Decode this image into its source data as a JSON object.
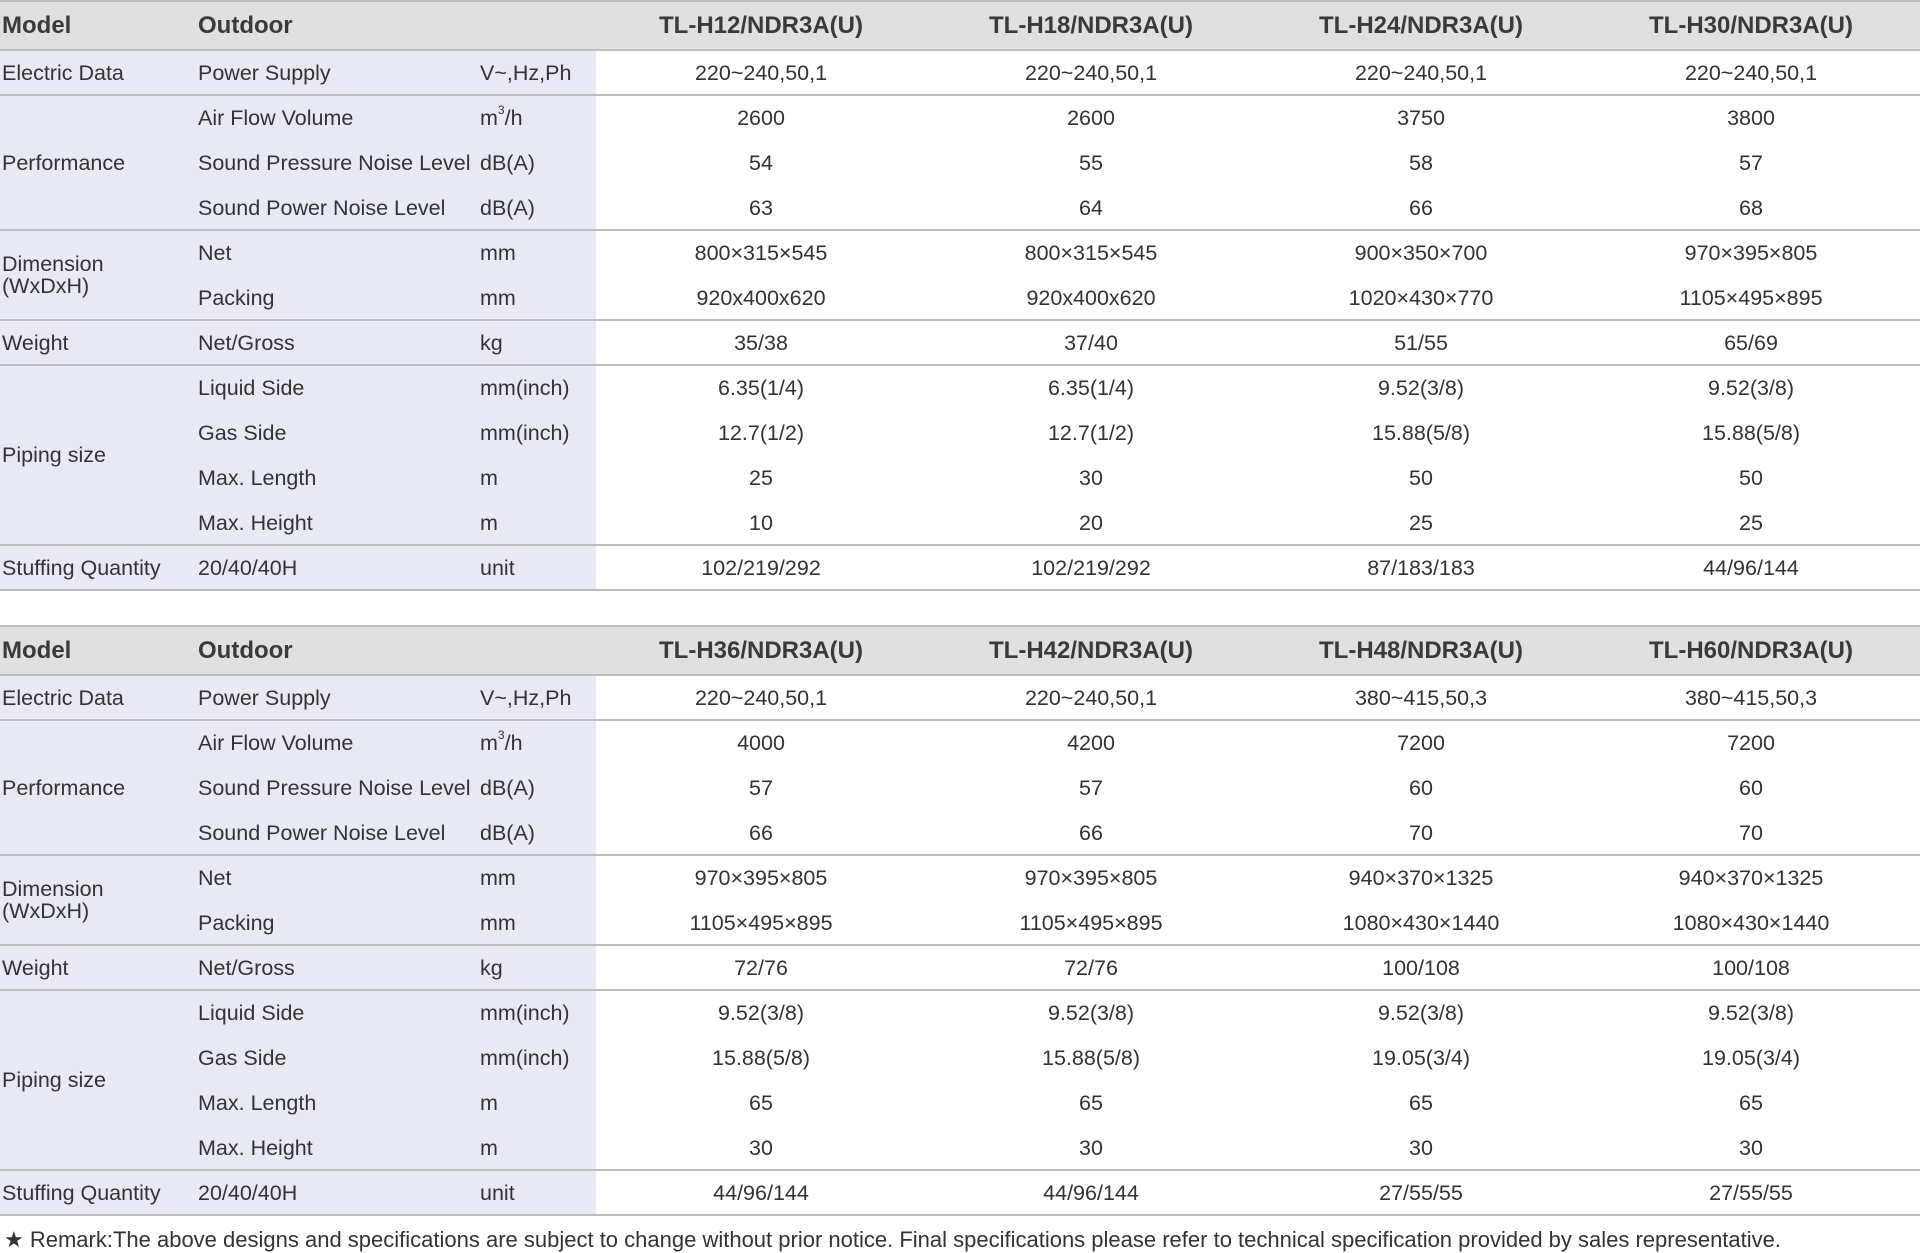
{
  "tables": [
    {
      "header": [
        "Model",
        "Outdoor",
        "TL-H12/NDR3A(U)",
        "TL-H18/NDR3A(U)",
        "TL-H24/NDR3A(U)",
        "TL-H30/NDR3A(U)"
      ],
      "groups": {
        "electric": "Electric Data",
        "performance": "Performance",
        "dimension": "Dimension (WxDxH)",
        "weight": "Weight",
        "piping": "Piping size",
        "stuffing": "Stuffing Quantity"
      },
      "rows": [
        {
          "label": "Power Supply",
          "unit": "V~,Hz,Ph",
          "values": [
            "220~240,50,1",
            "220~240,50,1",
            "220~240,50,1",
            "220~240,50,1"
          ]
        },
        {
          "label": "Air Flow Volume",
          "unit": "m3/h",
          "values": [
            "2600",
            "2600",
            "3750",
            "3800"
          ]
        },
        {
          "label": "Sound Pressure Noise Level",
          "unit": "dB(A)",
          "values": [
            "54",
            "55",
            "58",
            "57"
          ]
        },
        {
          "label": "Sound Power Noise Level",
          "unit": "dB(A)",
          "values": [
            "63",
            "64",
            "66",
            "68"
          ]
        },
        {
          "label": "Net",
          "unit": "mm",
          "values": [
            "800×315×545",
            "800×315×545",
            "900×350×700",
            "970×395×805"
          ]
        },
        {
          "label": "Packing",
          "unit": "mm",
          "values": [
            "920x400x620",
            "920x400x620",
            "1020×430×770",
            "1105×495×895"
          ]
        },
        {
          "label": "Net/Gross",
          "unit": "kg",
          "values": [
            "35/38",
            "37/40",
            "51/55",
            "65/69"
          ]
        },
        {
          "label": "Liquid Side",
          "unit": "mm(inch)",
          "values": [
            "6.35(1/4)",
            "6.35(1/4)",
            "9.52(3/8)",
            "9.52(3/8)"
          ]
        },
        {
          "label": "Gas Side",
          "unit": "mm(inch)",
          "values": [
            "12.7(1/2)",
            "12.7(1/2)",
            "15.88(5/8)",
            "15.88(5/8)"
          ]
        },
        {
          "label": "Max. Length",
          "unit": "m",
          "values": [
            "25",
            "30",
            "50",
            "50"
          ]
        },
        {
          "label": "Max. Height",
          "unit": "m",
          "values": [
            "10",
            "20",
            "25",
            "25"
          ]
        },
        {
          "label": "20/40/40H",
          "unit": "unit",
          "values": [
            "102/219/292",
            "102/219/292",
            "87/183/183",
            "44/96/144"
          ]
        }
      ]
    },
    {
      "header": [
        "Model",
        "Outdoor",
        "TL-H36/NDR3A(U)",
        "TL-H42/NDR3A(U)",
        "TL-H48/NDR3A(U)",
        "TL-H60/NDR3A(U)"
      ],
      "groups": {
        "electric": "Electric Data",
        "performance": "Performance",
        "dimension": "Dimension (WxDxH)",
        "weight": "Weight",
        "piping": "Piping size",
        "stuffing": "Stuffing Quantity"
      },
      "rows": [
        {
          "label": "Power Supply",
          "unit": "V~,Hz,Ph",
          "values": [
            "220~240,50,1",
            "220~240,50,1",
            "380~415,50,3",
            "380~415,50,3"
          ]
        },
        {
          "label": "Air Flow Volume",
          "unit": "m3/h",
          "values": [
            "4000",
            "4200",
            "7200",
            "7200"
          ]
        },
        {
          "label": "Sound Pressure Noise Level",
          "unit": "dB(A)",
          "values": [
            "57",
            "57",
            "60",
            "60"
          ]
        },
        {
          "label": "Sound Power Noise Level",
          "unit": "dB(A)",
          "values": [
            "66",
            "66",
            "70",
            "70"
          ]
        },
        {
          "label": "Net",
          "unit": "mm",
          "values": [
            "970×395×805",
            "970×395×805",
            "940×370×1325",
            "940×370×1325"
          ]
        },
        {
          "label": "Packing",
          "unit": "mm",
          "values": [
            "1105×495×895",
            "1105×495×895",
            "1080×430×1440",
            "1080×430×1440"
          ]
        },
        {
          "label": "Net/Gross",
          "unit": "kg",
          "values": [
            "72/76",
            "72/76",
            "100/108",
            "100/108"
          ]
        },
        {
          "label": "Liquid Side",
          "unit": "mm(inch)",
          "values": [
            "9.52(3/8)",
            "9.52(3/8)",
            "9.52(3/8)",
            "9.52(3/8)"
          ]
        },
        {
          "label": "Gas Side",
          "unit": "mm(inch)",
          "values": [
            "15.88(5/8)",
            "15.88(5/8)",
            "19.05(3/4)",
            "19.05(3/4)"
          ]
        },
        {
          "label": "Max. Length",
          "unit": "m",
          "values": [
            "65",
            "65",
            "65",
            "65"
          ]
        },
        {
          "label": "Max. Height",
          "unit": "m",
          "values": [
            "30",
            "30",
            "30",
            "30"
          ]
        },
        {
          "label": "20/40/40H",
          "unit": "unit",
          "values": [
            "44/96/144",
            "44/96/144",
            "27/55/55",
            "27/55/55"
          ]
        }
      ]
    }
  ],
  "remark": "★ Remark:The above designs and specifications are subject to change without prior notice. Final specifications please refer to technical specification provided by sales representative."
}
